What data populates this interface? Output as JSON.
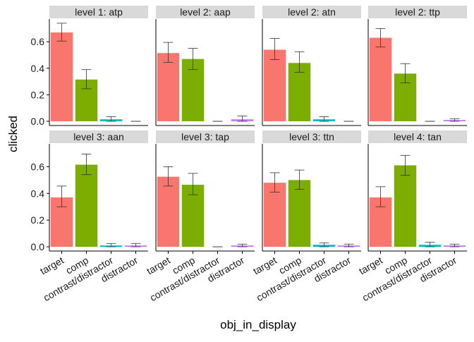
{
  "chart_data": {
    "type": "bar",
    "xlabel": "obj_in_display",
    "ylabel": "clicked",
    "categories": [
      "target",
      "comp",
      "contrast/distractor",
      "distractor"
    ],
    "ylim": [
      0,
      0.75
    ],
    "yticks": [
      0.0,
      0.2,
      0.4,
      0.6
    ],
    "ytick_labels": [
      "0.0",
      "0.2",
      "0.4",
      "0.6"
    ],
    "grid": false,
    "legend": "none",
    "category_colors": {
      "target": "#F8766D",
      "comp": "#7CAE00",
      "contrast/distractor": "#00BFC4",
      "distractor": "#C77CFF"
    },
    "strip_color": "#D9D9D9",
    "panels": [
      {
        "title": "level 1: atp",
        "values": [
          0.67,
          0.315,
          0.015,
          0.0
        ],
        "err_low": [
          0.605,
          0.245,
          0.0,
          0.0
        ],
        "err_high": [
          0.74,
          0.39,
          0.035,
          0.0
        ]
      },
      {
        "title": "level 2: aap",
        "values": [
          0.515,
          0.47,
          0.0,
          0.015
        ],
        "err_low": [
          0.445,
          0.39,
          0.0,
          0.0
        ],
        "err_high": [
          0.595,
          0.55,
          0.0,
          0.04
        ]
      },
      {
        "title": "level 2: atn",
        "values": [
          0.54,
          0.44,
          0.015,
          0.0
        ],
        "err_low": [
          0.465,
          0.37,
          0.0,
          0.0
        ],
        "err_high": [
          0.625,
          0.525,
          0.035,
          0.0
        ]
      },
      {
        "title": "level 2: ttp",
        "values": [
          0.63,
          0.36,
          0.0,
          0.01
        ],
        "err_low": [
          0.56,
          0.29,
          0.0,
          0.0
        ],
        "err_high": [
          0.7,
          0.435,
          0.0,
          0.02
        ]
      },
      {
        "title": "level 3: aan",
        "values": [
          0.37,
          0.615,
          0.01,
          0.01
        ],
        "err_low": [
          0.3,
          0.54,
          0.0,
          0.0
        ],
        "err_high": [
          0.455,
          0.695,
          0.025,
          0.025
        ]
      },
      {
        "title": "level 3: tap",
        "values": [
          0.525,
          0.465,
          0.0,
          0.01
        ],
        "err_low": [
          0.455,
          0.39,
          0.0,
          0.0
        ],
        "err_high": [
          0.6,
          0.55,
          0.0,
          0.02
        ]
      },
      {
        "title": "level 3: ttn",
        "values": [
          0.48,
          0.5,
          0.015,
          0.01
        ],
        "err_low": [
          0.41,
          0.43,
          0.0,
          0.0
        ],
        "err_high": [
          0.555,
          0.575,
          0.03,
          0.02
        ]
      },
      {
        "title": "level 4: tan",
        "values": [
          0.37,
          0.61,
          0.015,
          0.01
        ],
        "err_low": [
          0.3,
          0.535,
          0.0,
          0.0
        ],
        "err_high": [
          0.45,
          0.685,
          0.035,
          0.02
        ]
      }
    ]
  }
}
